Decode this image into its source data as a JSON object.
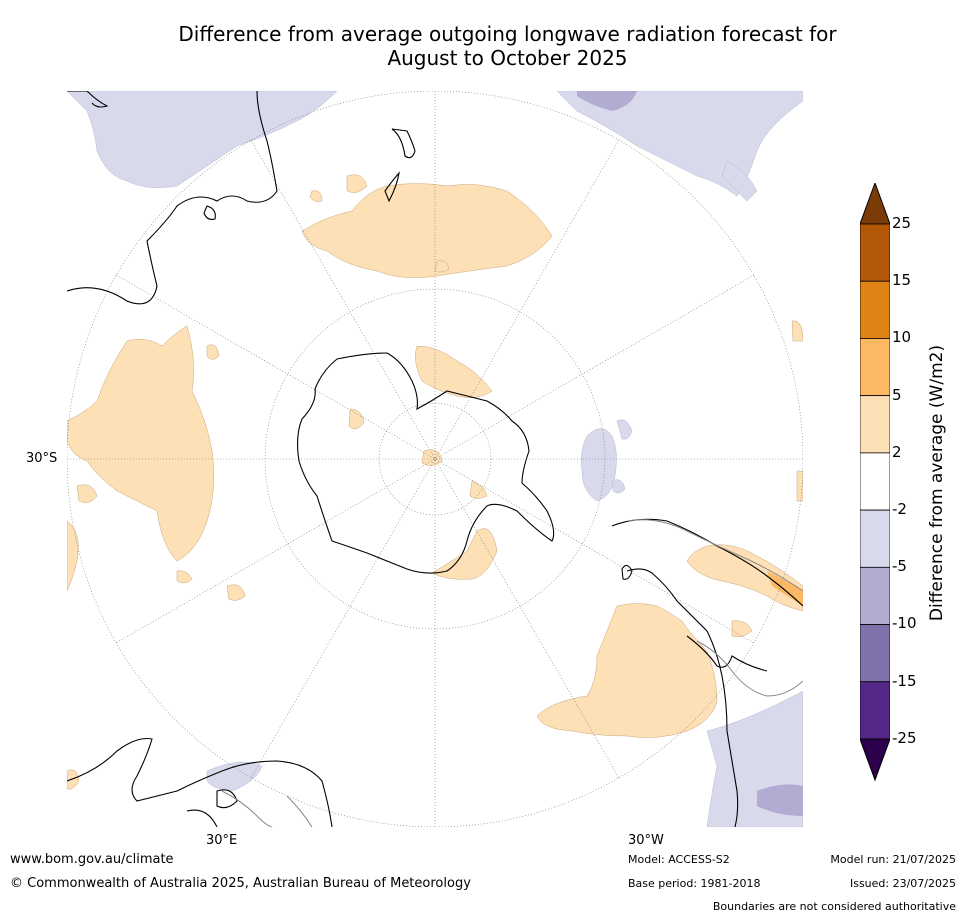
{
  "title_line1": "Difference from average outgoing longwave radiation forecast for",
  "title_line2": "August to October 2025",
  "lat_label": "30°S",
  "lon_labels": [
    "30°E",
    "30°W"
  ],
  "colorbar": {
    "label": "Difference from average (W/m2)",
    "ticks": [
      "25",
      "15",
      "10",
      "5",
      "2",
      "-2",
      "-5",
      "-10",
      "-15",
      "-25"
    ],
    "colors": [
      "#7a3b06",
      "#b35806",
      "#e08214",
      "#fdb863",
      "#fee0b6",
      "#ffffff",
      "#d8daeb",
      "#b2abd2",
      "#8073ac",
      "#542788",
      "#2d004b"
    ]
  },
  "footer": {
    "url": "www.bom.gov.au/climate",
    "copyright": "© Commonwealth of Australia 2025, Australian Bureau of Meteorology",
    "model": "Model: ACCESS-S2",
    "base_period": "Base period: 1981-2018",
    "model_run": "Model run: 21/07/2025",
    "issued": "Issued: 23/07/2025",
    "disclaimer": "Boundaries are not considered authoritative"
  }
}
